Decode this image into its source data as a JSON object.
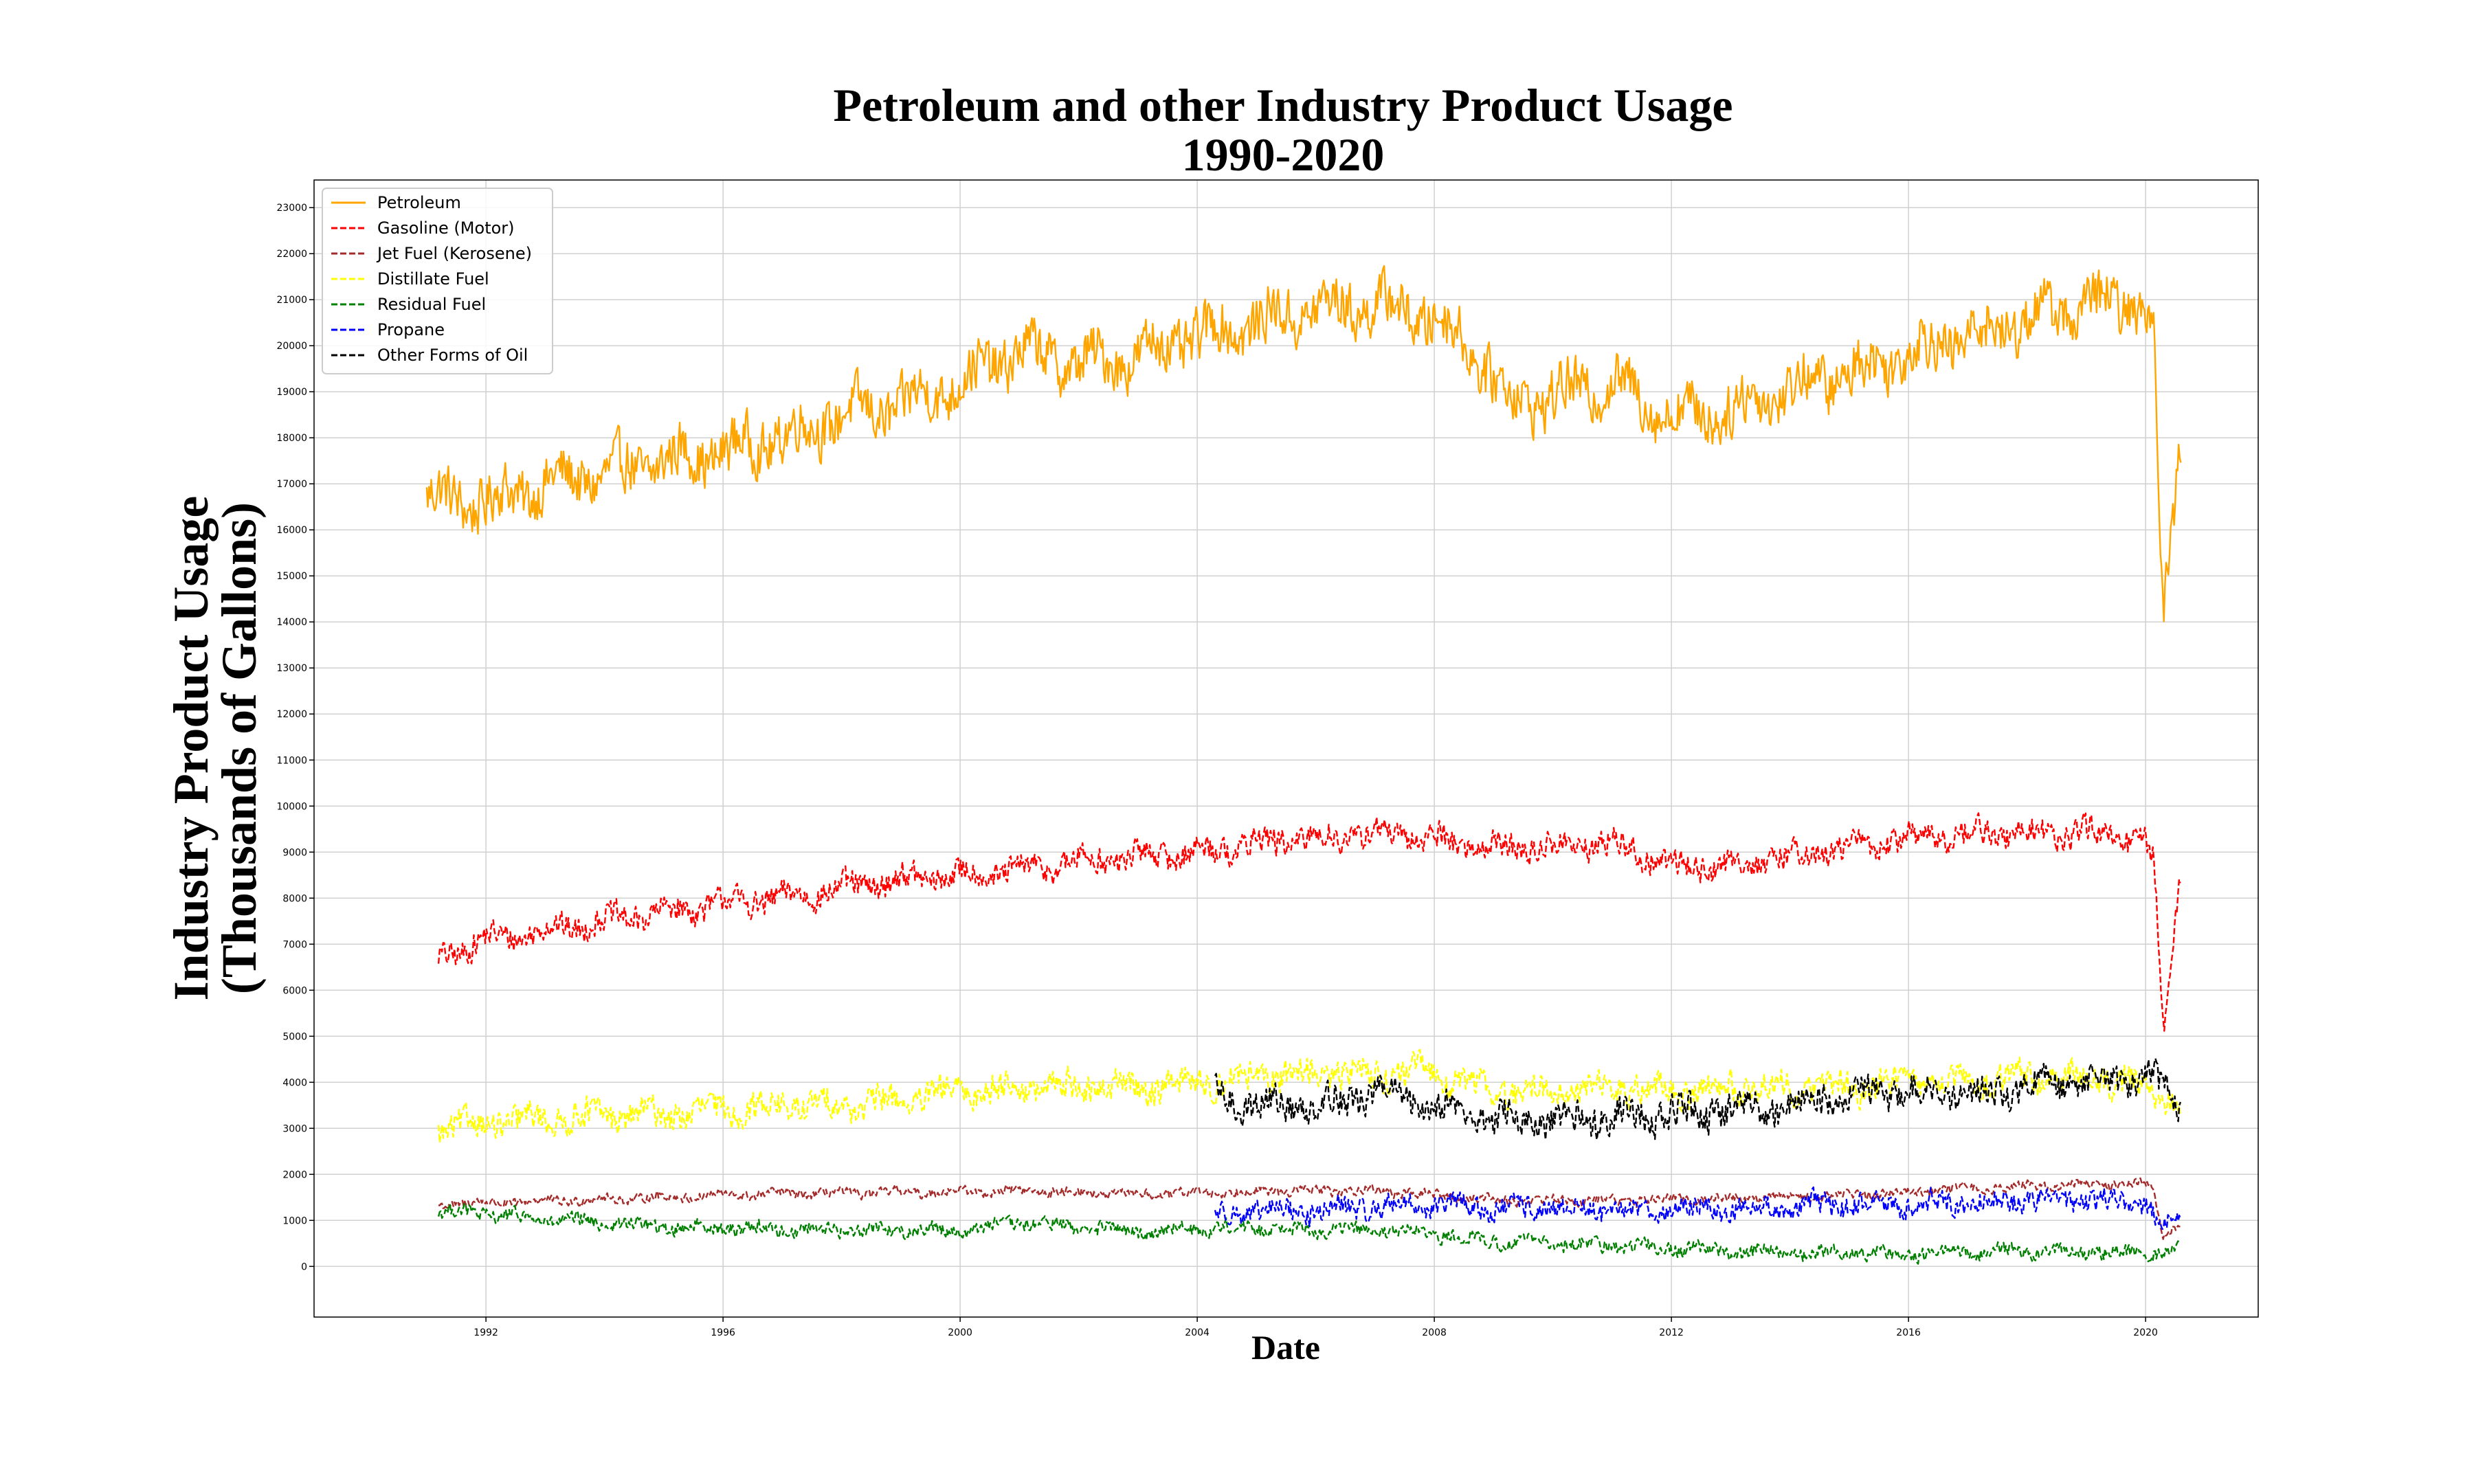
{
  "chart_data": {
    "type": "line",
    "title_line1": "Petroleum and other Industry Product Usage",
    "title_line2": "1990-2020",
    "xlabel": "Date",
    "ylabel_line1": "Industry Product Usage",
    "ylabel_line2": "(Thousands of Gallons)",
    "xlim": [
      1989.1,
      2021.9
    ],
    "ylim": [
      -1100,
      23600
    ],
    "x_ticks": [
      1992,
      1996,
      2000,
      2004,
      2008,
      2012,
      2016,
      2020
    ],
    "y_ticks": [
      0,
      1000,
      2000,
      3000,
      4000,
      5000,
      6000,
      7000,
      8000,
      9000,
      10000,
      11000,
      12000,
      13000,
      14000,
      15000,
      16000,
      17000,
      18000,
      19000,
      20000,
      21000,
      22000,
      23000
    ],
    "grid": true,
    "legend_position": "top-left",
    "series": [
      {
        "name": "Petroleum",
        "color": "#FFA500",
        "dash": "solid",
        "amplitude": 700,
        "start": 1991.0,
        "anchors": [
          [
            1991.0,
            16700
          ],
          [
            1992.0,
            16600
          ],
          [
            1993.0,
            17000
          ],
          [
            1994.0,
            17200
          ],
          [
            1995.0,
            17500
          ],
          [
            1996.0,
            17700
          ],
          [
            1997.0,
            18000
          ],
          [
            1998.0,
            18500
          ],
          [
            1999.0,
            18700
          ],
          [
            2000.0,
            19200
          ],
          [
            2001.0,
            19900
          ],
          [
            2002.0,
            19600
          ],
          [
            2003.0,
            19800
          ],
          [
            2004.0,
            20200
          ],
          [
            2005.0,
            20500
          ],
          [
            2006.0,
            20800
          ],
          [
            2007.0,
            20900
          ],
          [
            2008.0,
            20600
          ],
          [
            2008.6,
            20000
          ],
          [
            2009.3,
            18800
          ],
          [
            2010.0,
            18900
          ],
          [
            2011.0,
            19200
          ],
          [
            2012.0,
            18500
          ],
          [
            2013.0,
            18600
          ],
          [
            2014.0,
            19100
          ],
          [
            2015.0,
            19400
          ],
          [
            2016.0,
            19900
          ],
          [
            2017.0,
            20200
          ],
          [
            2018.0,
            20600
          ],
          [
            2019.0,
            20900
          ],
          [
            2020.0,
            20900
          ],
          [
            2020.15,
            20200
          ],
          [
            2020.3,
            13800
          ],
          [
            2020.45,
            16000
          ],
          [
            2020.6,
            18100
          ]
        ]
      },
      {
        "name": "Gasoline (Motor)",
        "color": "#FF0000",
        "dash": "dashed",
        "amplitude": 350,
        "start": 1991.2,
        "anchors": [
          [
            1991.2,
            6700
          ],
          [
            1992.0,
            7100
          ],
          [
            1993.0,
            7300
          ],
          [
            1994.0,
            7500
          ],
          [
            1995.0,
            7700
          ],
          [
            1996.0,
            7900
          ],
          [
            1997.0,
            8000
          ],
          [
            1998.0,
            8200
          ],
          [
            1999.0,
            8400
          ],
          [
            2000.0,
            8500
          ],
          [
            2001.0,
            8600
          ],
          [
            2002.0,
            8800
          ],
          [
            2003.0,
            8900
          ],
          [
            2004.0,
            9000
          ],
          [
            2005.0,
            9200
          ],
          [
            2006.0,
            9300
          ],
          [
            2007.0,
            9400
          ],
          [
            2008.0,
            9300
          ],
          [
            2009.0,
            9100
          ],
          [
            2010.0,
            9100
          ],
          [
            2011.0,
            9200
          ],
          [
            2012.0,
            8700
          ],
          [
            2013.0,
            8700
          ],
          [
            2014.0,
            8900
          ],
          [
            2015.0,
            9100
          ],
          [
            2016.0,
            9300
          ],
          [
            2017.0,
            9400
          ],
          [
            2018.0,
            9400
          ],
          [
            2019.0,
            9400
          ],
          [
            2020.0,
            9200
          ],
          [
            2020.15,
            8700
          ],
          [
            2020.3,
            5000
          ],
          [
            2020.45,
            7200
          ],
          [
            2020.6,
            8700
          ]
        ]
      },
      {
        "name": "Jet Fuel (Kerosene)",
        "color": "#A52A2A",
        "dash": "dashed",
        "amplitude": 120,
        "start": 1991.2,
        "anchors": [
          [
            1991.2,
            1350
          ],
          [
            1993.0,
            1420
          ],
          [
            1995.0,
            1500
          ],
          [
            1997.0,
            1580
          ],
          [
            1999.0,
            1600
          ],
          [
            2001.0,
            1650
          ],
          [
            2003.0,
            1560
          ],
          [
            2005.0,
            1640
          ],
          [
            2007.0,
            1650
          ],
          [
            2009.0,
            1450
          ],
          [
            2011.0,
            1430
          ],
          [
            2013.0,
            1480
          ],
          [
            2015.0,
            1560
          ],
          [
            2017.0,
            1690
          ],
          [
            2019.0,
            1790
          ],
          [
            2020.1,
            1800
          ],
          [
            2020.3,
            700
          ],
          [
            2020.6,
            1000
          ]
        ]
      },
      {
        "name": "Distillate Fuel",
        "color": "#FFFF00",
        "dash": "dashed",
        "amplitude": 380,
        "start": 1991.2,
        "anchors": [
          [
            1991.2,
            3000
          ],
          [
            1992.0,
            3100
          ],
          [
            1993.0,
            3200
          ],
          [
            1994.0,
            3300
          ],
          [
            1995.0,
            3300
          ],
          [
            1996.0,
            3400
          ],
          [
            1997.0,
            3500
          ],
          [
            1998.0,
            3500
          ],
          [
            1999.0,
            3600
          ],
          [
            2000.0,
            3800
          ],
          [
            2001.0,
            3900
          ],
          [
            2002.0,
            3900
          ],
          [
            2003.0,
            3900
          ],
          [
            2004.0,
            4000
          ],
          [
            2005.0,
            4100
          ],
          [
            2006.0,
            4200
          ],
          [
            2007.0,
            4200
          ],
          [
            2008.0,
            4200
          ],
          [
            2009.0,
            3800
          ],
          [
            2010.0,
            3800
          ],
          [
            2011.0,
            3900
          ],
          [
            2012.0,
            3800
          ],
          [
            2013.0,
            3900
          ],
          [
            2014.0,
            3900
          ],
          [
            2015.0,
            3900
          ],
          [
            2016.0,
            4000
          ],
          [
            2017.0,
            4000
          ],
          [
            2018.0,
            4100
          ],
          [
            2019.0,
            4100
          ],
          [
            2020.0,
            3900
          ],
          [
            2020.6,
            3500
          ]
        ]
      },
      {
        "name": "Residual Fuel",
        "color": "#008000",
        "dash": "dashed",
        "amplitude": 180,
        "start": 1991.2,
        "anchors": [
          [
            1991.2,
            1200
          ],
          [
            1992.0,
            1150
          ],
          [
            1993.0,
            1000
          ],
          [
            1994.0,
            950
          ],
          [
            1995.0,
            850
          ],
          [
            1996.0,
            850
          ],
          [
            1997.0,
            800
          ],
          [
            1998.0,
            800
          ],
          [
            1999.0,
            800
          ],
          [
            2000.0,
            780
          ],
          [
            2001.0,
            950
          ],
          [
            2002.0,
            850
          ],
          [
            2003.0,
            750
          ],
          [
            2004.0,
            820
          ],
          [
            2005.0,
            850
          ],
          [
            2006.0,
            800
          ],
          [
            2007.0,
            780
          ],
          [
            2008.0,
            700
          ],
          [
            2009.0,
            550
          ],
          [
            2010.0,
            500
          ],
          [
            2011.0,
            450
          ],
          [
            2012.0,
            400
          ],
          [
            2013.0,
            330
          ],
          [
            2014.0,
            300
          ],
          [
            2015.0,
            280
          ],
          [
            2016.0,
            280
          ],
          [
            2017.0,
            320
          ],
          [
            2018.0,
            330
          ],
          [
            2019.0,
            300
          ],
          [
            2020.0,
            300
          ],
          [
            2020.6,
            350
          ]
        ]
      },
      {
        "name": "Propane",
        "color": "#0000FF",
        "dash": "dashed",
        "amplitude": 280,
        "start": 2004.3,
        "anchors": [
          [
            2004.3,
            1100
          ],
          [
            2005.0,
            1200
          ],
          [
            2006.0,
            1200
          ],
          [
            2007.0,
            1300
          ],
          [
            2008.0,
            1350
          ],
          [
            2009.0,
            1250
          ],
          [
            2010.0,
            1250
          ],
          [
            2011.0,
            1200
          ],
          [
            2012.0,
            1250
          ],
          [
            2013.0,
            1250
          ],
          [
            2014.0,
            1300
          ],
          [
            2015.0,
            1350
          ],
          [
            2016.0,
            1350
          ],
          [
            2017.0,
            1400
          ],
          [
            2018.0,
            1450
          ],
          [
            2019.0,
            1450
          ],
          [
            2020.0,
            1400
          ],
          [
            2020.3,
            800
          ],
          [
            2020.6,
            1000
          ]
        ]
      },
      {
        "name": "Other Forms of Oil",
        "color": "#000000",
        "dash": "dashed",
        "amplitude": 420,
        "start": 2004.3,
        "anchors": [
          [
            2004.3,
            3700
          ],
          [
            2005.0,
            3500
          ],
          [
            2006.0,
            3500
          ],
          [
            2007.0,
            3800
          ],
          [
            2008.0,
            3500
          ],
          [
            2009.0,
            3200
          ],
          [
            2010.0,
            3100
          ],
          [
            2011.0,
            3300
          ],
          [
            2012.0,
            3300
          ],
          [
            2013.0,
            3400
          ],
          [
            2014.0,
            3500
          ],
          [
            2015.0,
            3800
          ],
          [
            2016.0,
            3800
          ],
          [
            2017.0,
            3700
          ],
          [
            2018.0,
            3900
          ],
          [
            2019.0,
            4000
          ],
          [
            2020.0,
            4100
          ],
          [
            2020.6,
            3600
          ]
        ]
      }
    ]
  }
}
